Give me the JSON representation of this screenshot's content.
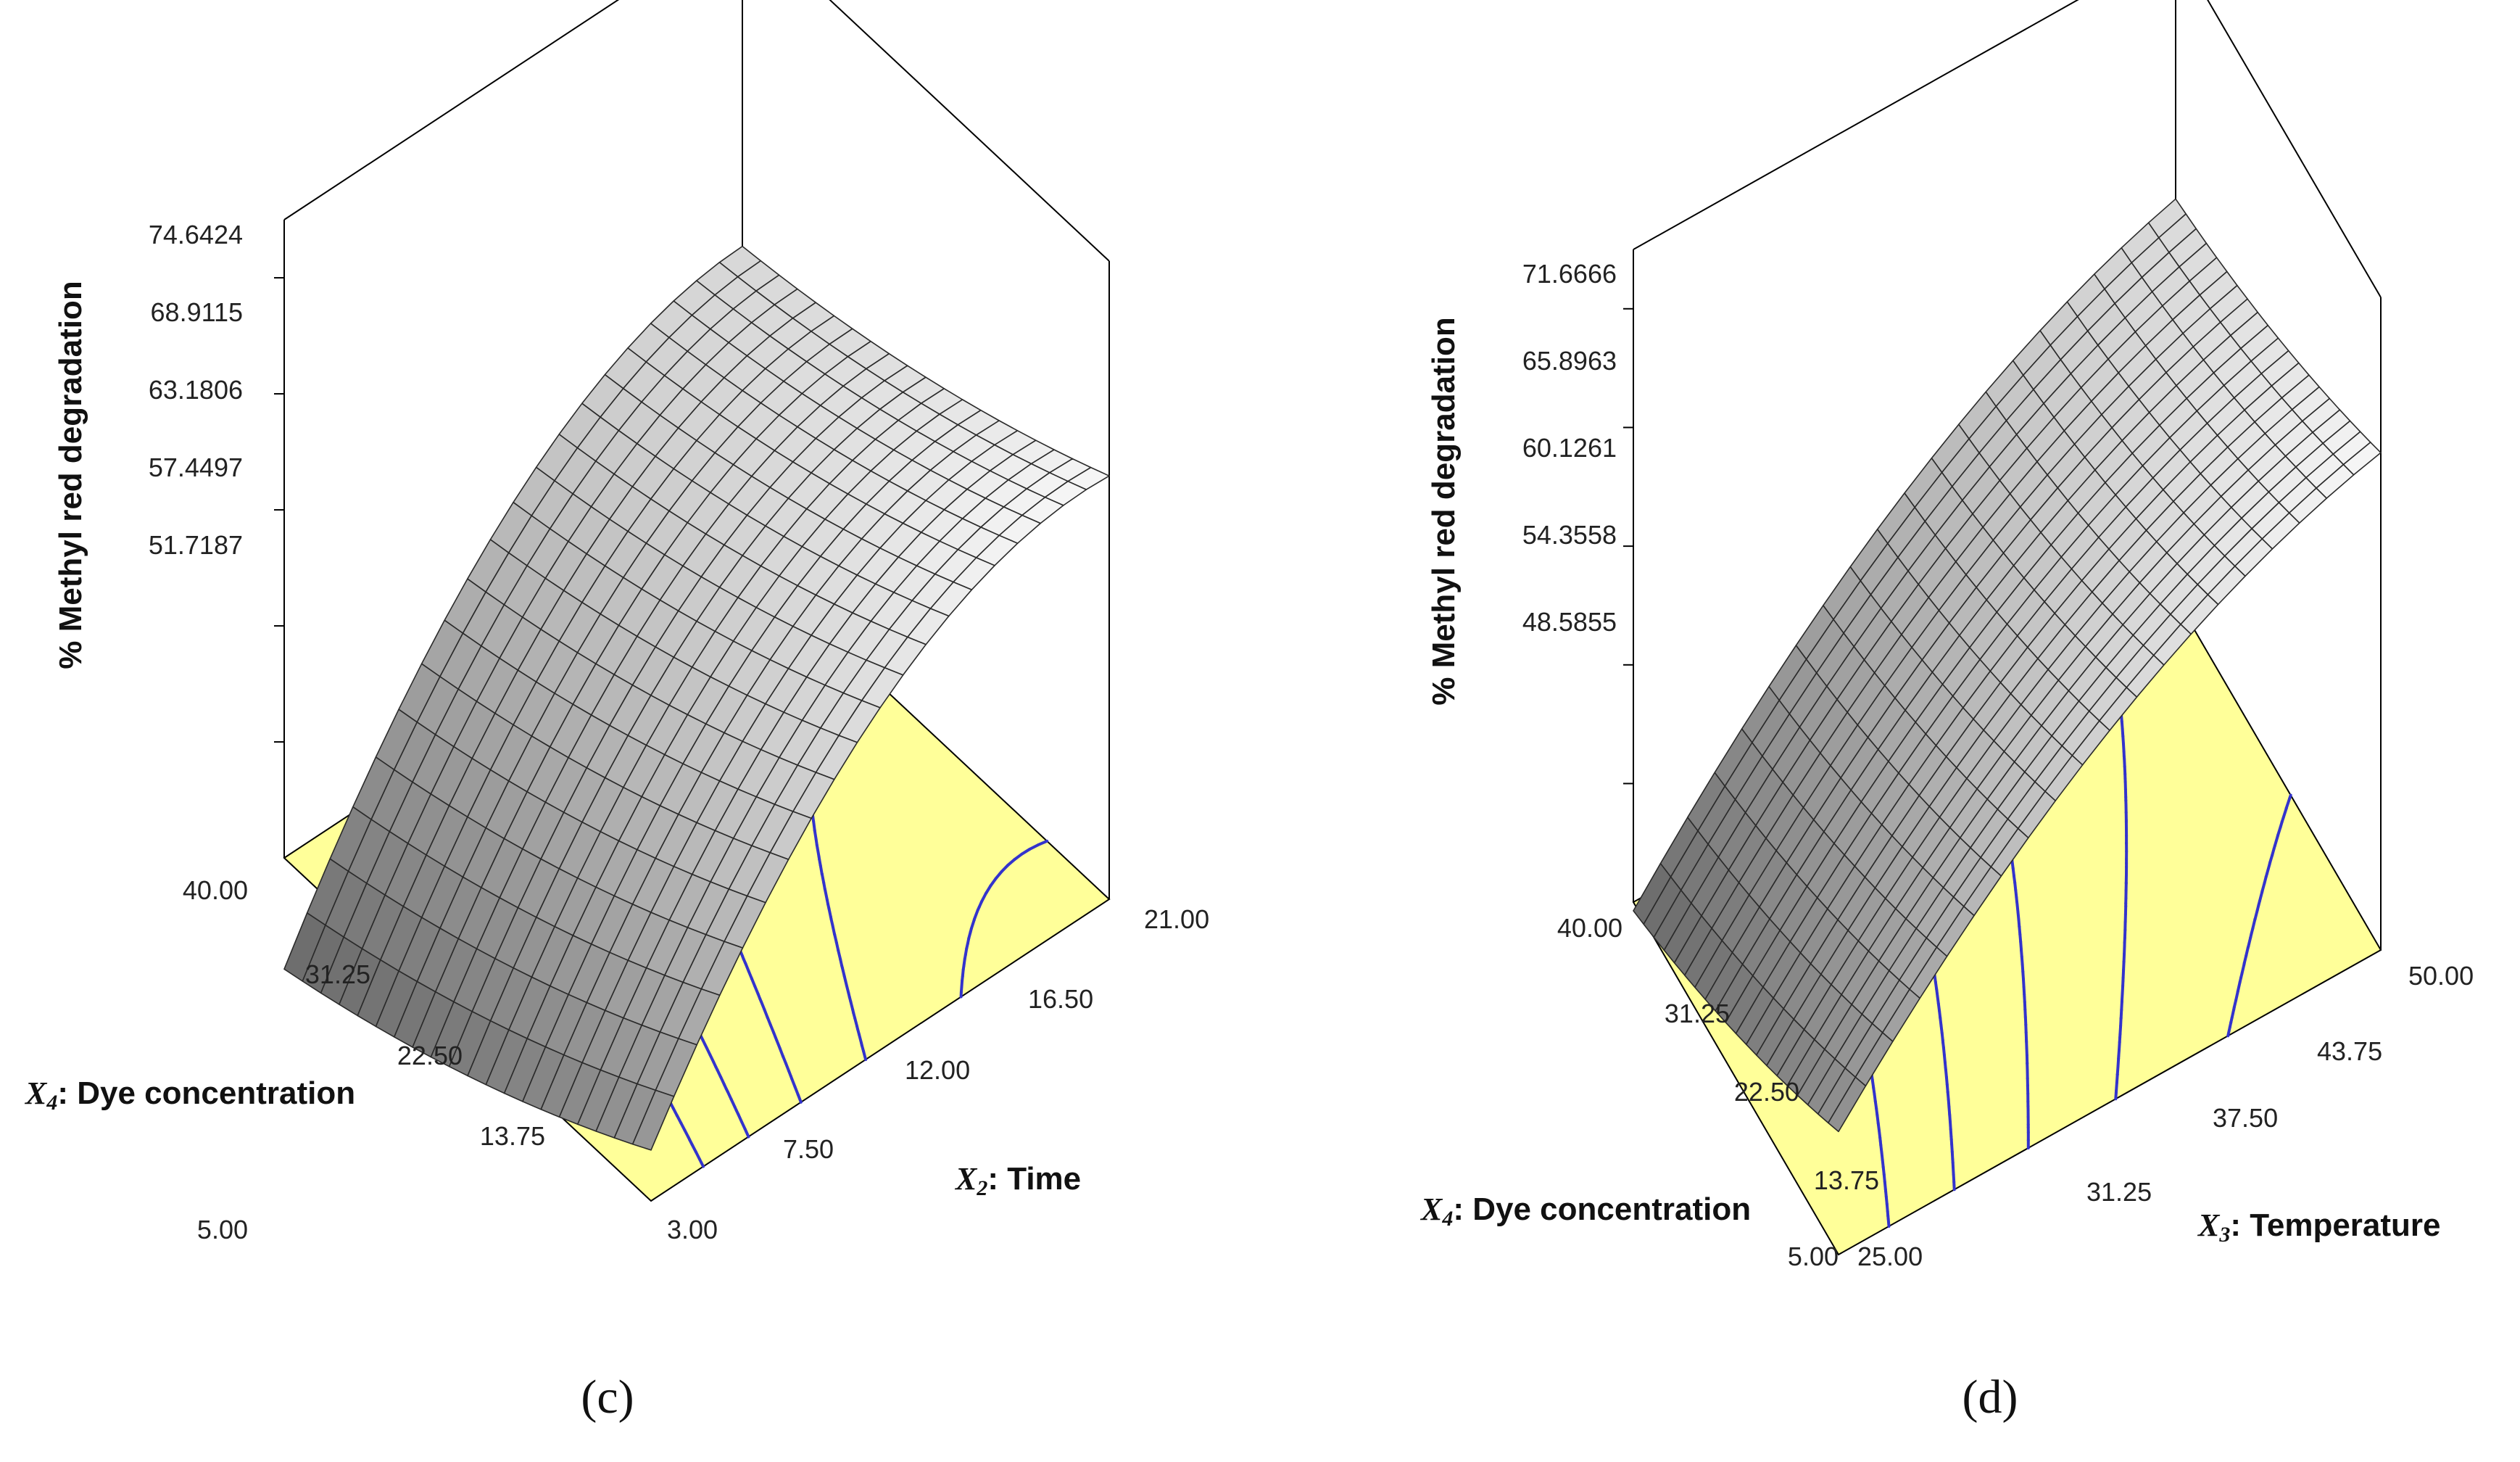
{
  "chart_data": [
    {
      "type": "surface3d",
      "panel_label": "(c)",
      "zlabel": "% Methyl red degradation",
      "z_ticks": [
        "74.6424",
        "68.9115",
        "63.1806",
        "57.4497",
        "51.7187"
      ],
      "x_axis": {
        "symbol": "X",
        "subscript": "2",
        "name": ": Time",
        "ticks": [
          "3.00",
          "7.50",
          "12.00",
          "16.50",
          "21.00"
        ]
      },
      "y_axis": {
        "symbol": "X",
        "subscript": "4",
        "name": ": Dye concentration",
        "ticks": [
          "5.00",
          "13.75",
          "22.50",
          "31.25",
          "40.00"
        ]
      },
      "z_range": [
        45.99,
        77.51
      ],
      "surface_model": {
        "base": 58.7,
        "x_lin": 9.8,
        "x_quad": -5.2,
        "y_lin": -3.4,
        "y_quad": 0.8,
        "xy": 0.6
      }
    },
    {
      "type": "surface3d",
      "panel_label": "(d)",
      "zlabel": "% Methyl red degradation",
      "z_ticks": [
        "71.6666",
        "65.8963",
        "60.1261",
        "54.3558",
        "48.5855"
      ],
      "x_axis": {
        "symbol": "X",
        "subscript": "3",
        "name": ": Temperature",
        "ticks": [
          "25.00",
          "31.25",
          "37.50",
          "43.75",
          "50.00"
        ]
      },
      "y_axis": {
        "symbol": "X",
        "subscript": "4",
        "name": ": Dye concentration",
        "ticks": [
          "5.00",
          "13.75",
          "22.50",
          "31.25",
          "40.00"
        ]
      },
      "z_range": [
        42.82,
        74.55
      ],
      "surface_model": {
        "base": 57.5,
        "x_lin": 9.5,
        "x_quad": -3.0,
        "y_lin": -2.8,
        "y_quad": 0.6,
        "xy": 0.4
      }
    }
  ],
  "colors": {
    "floor": "#ffff99",
    "contour": "#3333cc",
    "axis": "#000000",
    "mesh": "#2a2a2a"
  }
}
